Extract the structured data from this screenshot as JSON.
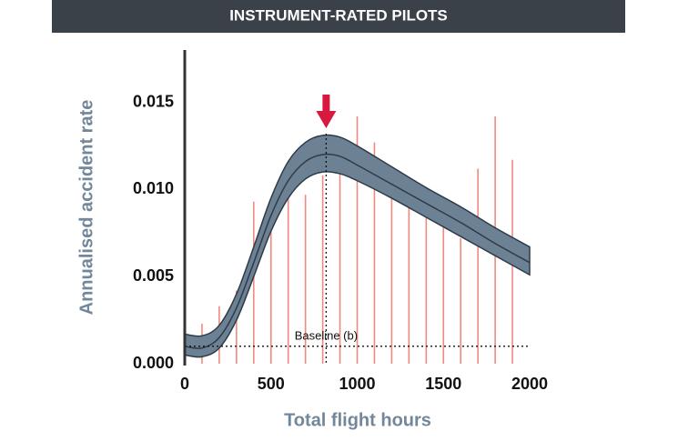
{
  "chart_data": {
    "type": "band-line",
    "title": "INSTRUMENT-RATED PILOTS",
    "x_label": "Total flight hours",
    "y_label": "Annualised accident rate",
    "xlim": [
      0,
      2000
    ],
    "xticks": [
      0,
      500,
      1000,
      1500,
      2000
    ],
    "ylim": [
      0,
      0.018
    ],
    "yticks": [
      {
        "value": 0,
        "label": "0.000"
      },
      {
        "value": 0.005,
        "label": "0.005"
      },
      {
        "value": 0.01,
        "label": "0.010"
      },
      {
        "value": 0.015,
        "label": "0.015"
      }
    ],
    "x": [
      0,
      100,
      200,
      300,
      400,
      500,
      600,
      700,
      800,
      900,
      1000,
      1200,
      1400,
      1600,
      1800,
      2000
    ],
    "mean": [
      0.001,
      0.0009,
      0.0015,
      0.0032,
      0.0058,
      0.0085,
      0.0105,
      0.0116,
      0.012,
      0.0119,
      0.0114,
      0.0103,
      0.0092,
      0.0081,
      0.0069,
      0.0058
    ],
    "band": {
      "lower": [
        0.0005,
        0.0004,
        0.0009,
        0.0025,
        0.005,
        0.0076,
        0.0095,
        0.0106,
        0.011,
        0.0109,
        0.0105,
        0.0095,
        0.0084,
        0.0073,
        0.0062,
        0.0051
      ],
      "upper": [
        0.0017,
        0.0016,
        0.0022,
        0.004,
        0.0067,
        0.0095,
        0.0116,
        0.0127,
        0.0131,
        0.013,
        0.0125,
        0.0113,
        0.0101,
        0.009,
        0.0078,
        0.0067
      ]
    },
    "band_color": "#6d8194",
    "line_color": "#2d3b48",
    "bars": {
      "x": [
        100,
        200,
        300,
        400,
        500,
        600,
        700,
        800,
        900,
        1000,
        1100,
        1200,
        1300,
        1400,
        1500,
        1600,
        1700,
        1800,
        1900
      ],
      "values": [
        0.0023,
        0.0033,
        0.0042,
        0.0093,
        0.0077,
        0.0097,
        0.0097,
        0.0108,
        0.0125,
        0.0142,
        0.0127,
        0.0104,
        0.0096,
        0.0089,
        0.0081,
        0.0072,
        0.0112,
        0.0142,
        0.0117
      ],
      "color": "#f08a80"
    },
    "baseline": {
      "value": 0.001,
      "label": "Baseline (b)"
    },
    "peak_x": 820,
    "arrow_color": "#d7193f"
  }
}
